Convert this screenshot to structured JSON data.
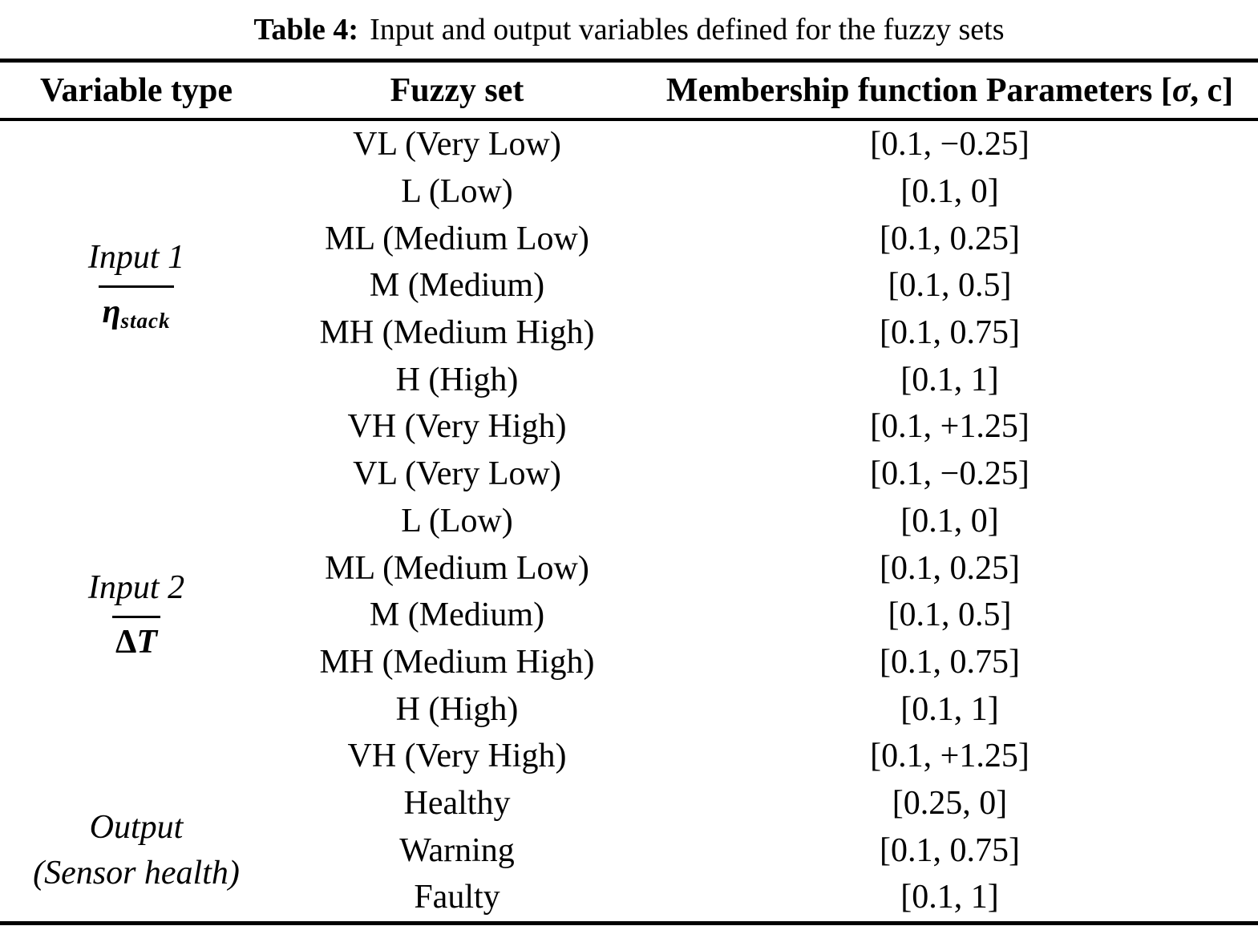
{
  "caption": {
    "label": "Table 4:",
    "text": "Input and output variables defined for the fuzzy sets"
  },
  "header": {
    "variable_type": "Variable type",
    "fuzzy_set": "Fuzzy set",
    "params_prefix": "Membership function Parameters [",
    "params_sigma": "σ",
    "params_suffix": ", c]"
  },
  "groups": {
    "input1": {
      "line1": "Input 1",
      "symbol": "η",
      "symbol_sub": "stack"
    },
    "input2": {
      "line1": "Input 2",
      "symbol_delta": "Δ",
      "symbol_t": "T"
    },
    "output": {
      "line1": "Output",
      "line2": "(Sensor health)"
    }
  },
  "rows": [
    {
      "fuzzy_set": "VL (Very Low)",
      "params": "[0.1, −0.25]"
    },
    {
      "fuzzy_set": "L (Low)",
      "params": "[0.1, 0]"
    },
    {
      "fuzzy_set": "ML (Medium Low)",
      "params": "[0.1, 0.25]"
    },
    {
      "fuzzy_set": "M (Medium)",
      "params": "[0.1, 0.5]"
    },
    {
      "fuzzy_set": "MH (Medium High)",
      "params": "[0.1, 0.75]"
    },
    {
      "fuzzy_set": "H (High)",
      "params": "[0.1, 1]"
    },
    {
      "fuzzy_set": "VH (Very High)",
      "params": "[0.1, +1.25]"
    },
    {
      "fuzzy_set": "VL (Very Low)",
      "params": "[0.1, −0.25]"
    },
    {
      "fuzzy_set": "L (Low)",
      "params": "[0.1, 0]"
    },
    {
      "fuzzy_set": "ML (Medium Low)",
      "params": "[0.1, 0.25]"
    },
    {
      "fuzzy_set": "M (Medium)",
      "params": "[0.1, 0.5]"
    },
    {
      "fuzzy_set": "MH (Medium High)",
      "params": "[0.1, 0.75]"
    },
    {
      "fuzzy_set": "H (High)",
      "params": "[0.1, 1]"
    },
    {
      "fuzzy_set": "VH (Very High)",
      "params": "[0.1, +1.25]"
    },
    {
      "fuzzy_set": "Healthy",
      "params": "[0.25, 0]"
    },
    {
      "fuzzy_set": "Warning",
      "params": "[0.1, 0.75]"
    },
    {
      "fuzzy_set": "Faulty",
      "params": "[0.1, 1]"
    }
  ],
  "colors": {
    "text": "#000000",
    "background": "#ffffff",
    "rule": "#000000"
  }
}
